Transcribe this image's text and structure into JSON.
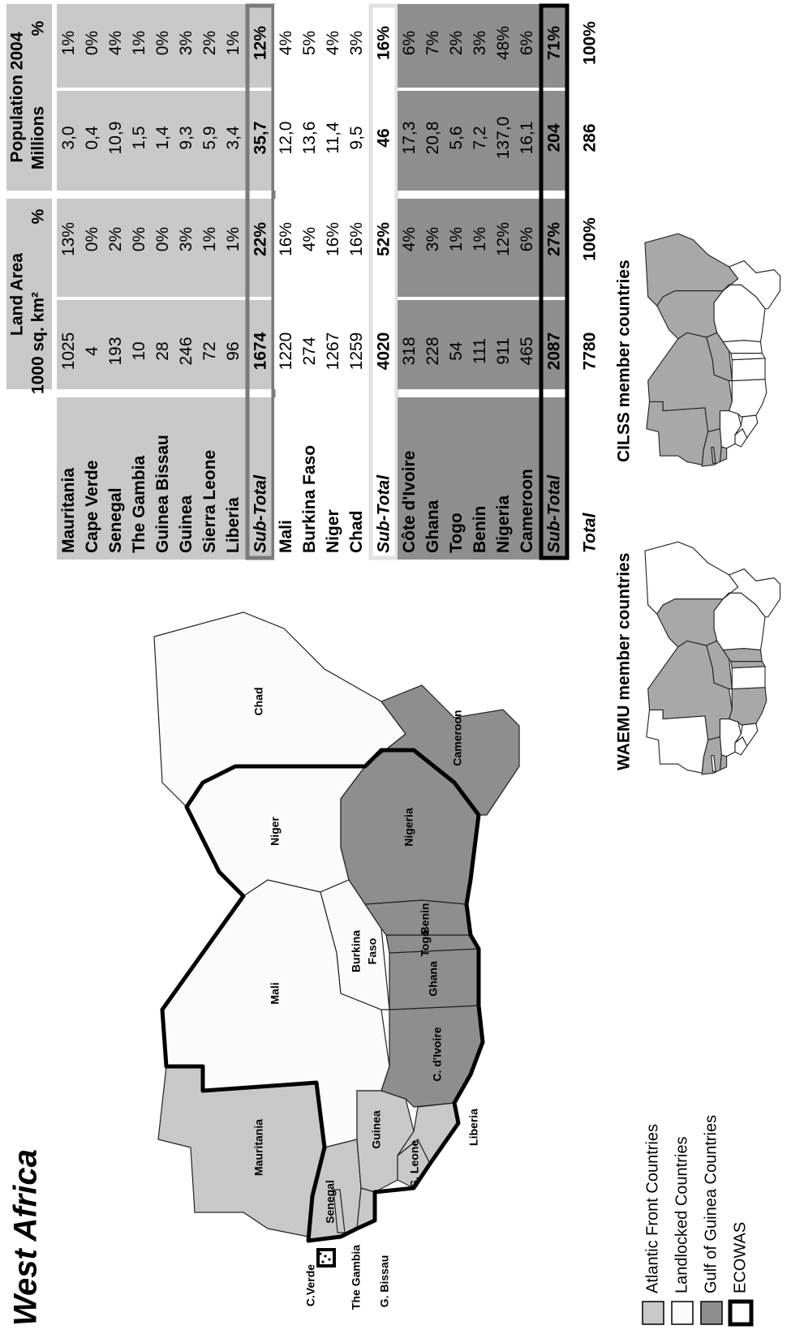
{
  "title": "West Africa",
  "map": {
    "labels": [
      "Mauritania",
      "Mali",
      "Niger",
      "Chad",
      "Nigeria",
      "Cameroon",
      "Burkina",
      "Faso",
      "Benin",
      "Togo",
      "Ghana",
      "C. d'Ivoire",
      "Guinea",
      "S. Leone",
      "Liberia",
      "Senegal",
      "The Gambia",
      "G. Bissau",
      "C.Verde"
    ]
  },
  "legend": [
    "Atlantic Front Countries",
    "Landlocked Countries",
    "Gulf of Guinea Countries",
    "ECOWAS"
  ],
  "table": {
    "header": {
      "land_area": "Land Area",
      "land_unit": "1000 sq. km²",
      "land_pct": "%",
      "population": "Population 2004",
      "pop_unit": "Millions",
      "pop_pct": "%"
    },
    "groups": [
      {
        "rows": [
          [
            "Mauritania",
            "1025",
            "13%",
            "3,0",
            "1%"
          ],
          [
            "Cape Verde",
            "4",
            "0%",
            "0,4",
            "0%"
          ],
          [
            "Senegal",
            "193",
            "2%",
            "10,9",
            "4%"
          ],
          [
            "The Gambia",
            "10",
            "0%",
            "1,5",
            "1%"
          ],
          [
            "Guinea Bissau",
            "28",
            "0%",
            "1,4",
            "0%"
          ],
          [
            "Guinea",
            "246",
            "3%",
            "9,3",
            "3%"
          ],
          [
            "Sierra Leone",
            "72",
            "1%",
            "5,9",
            "2%"
          ],
          [
            "Liberia",
            "96",
            "1%",
            "3,4",
            "1%"
          ]
        ],
        "subtotal": [
          "Sub-Total",
          "1674",
          "22%",
          "35,7",
          "12%"
        ]
      },
      {
        "rows": [
          [
            "Mali",
            "1220",
            "16%",
            "12,0",
            "4%"
          ],
          [
            "Burkina Faso",
            "274",
            "4%",
            "13,6",
            "5%"
          ],
          [
            "Niger",
            "1267",
            "16%",
            "11,4",
            "4%"
          ],
          [
            "Chad",
            "1259",
            "16%",
            "9,5",
            "3%"
          ]
        ],
        "subtotal": [
          "Sub-Total",
          "4020",
          "52%",
          "46",
          "16%"
        ]
      },
      {
        "rows": [
          [
            "Côte d'Ivoire",
            "318",
            "4%",
            "17,3",
            "6%"
          ],
          [
            "Ghana",
            "228",
            "3%",
            "20,8",
            "7%"
          ],
          [
            "Togo",
            "54",
            "1%",
            "5,6",
            "2%"
          ],
          [
            "Benin",
            "111",
            "1%",
            "7,2",
            "3%"
          ],
          [
            "Nigeria",
            "911",
            "12%",
            "137,0",
            "48%"
          ],
          [
            "Cameroon",
            "465",
            "6%",
            "16,1",
            "6%"
          ]
        ],
        "subtotal": [
          "Sub-Total",
          "2087",
          "27%",
          "204",
          "71%"
        ]
      }
    ],
    "total": [
      "Total",
      "7780",
      "100%",
      "286",
      "100%"
    ]
  },
  "minimaps": [
    "WAEMU member countries",
    "CILSS member countries"
  ]
}
